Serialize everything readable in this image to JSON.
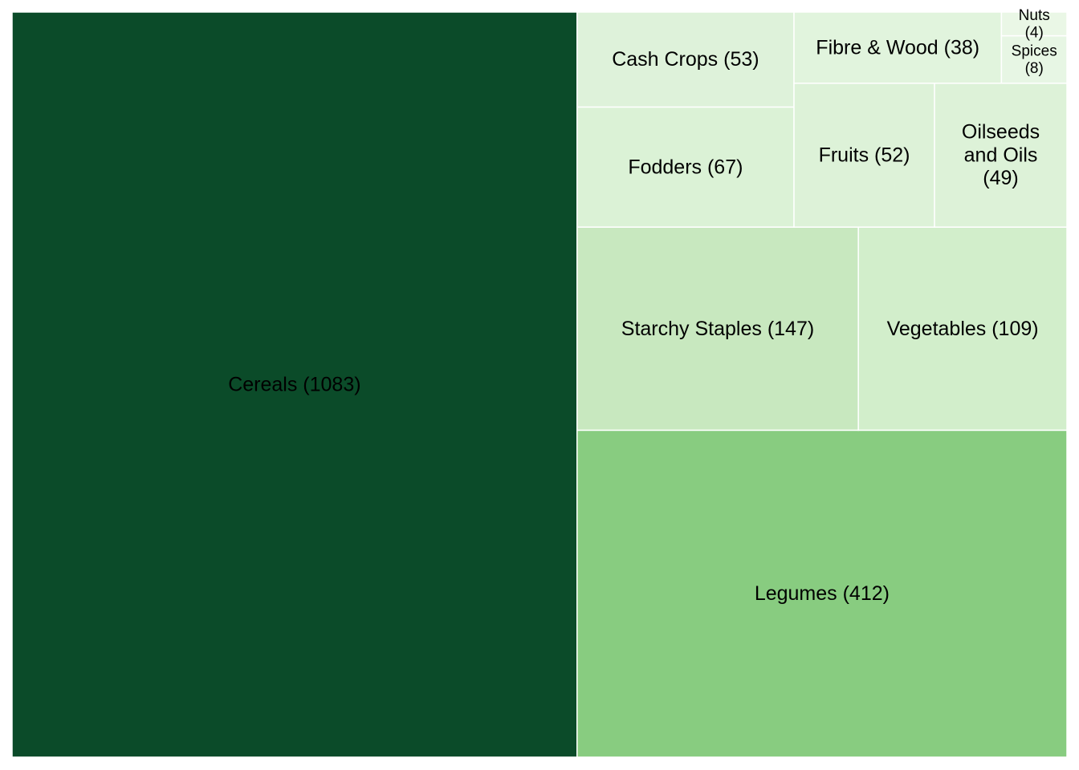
{
  "chart_data": {
    "type": "treemap",
    "title": "",
    "categories": [
      "Cereals",
      "Legumes",
      "Starchy Staples",
      "Vegetables",
      "Fodders",
      "Cash Crops",
      "Fruits",
      "Oilseeds and Oils",
      "Fibre & Wood",
      "Spices",
      "Nuts"
    ],
    "values": [
      1083,
      412,
      147,
      109,
      67,
      53,
      52,
      49,
      38,
      8,
      4
    ],
    "labels": [
      "Cereals (1083)",
      "Legumes (412)",
      "Starchy Staples (147)",
      "Vegetables (109)",
      "Fodders (67)",
      "Cash Crops (53)",
      "Fruits (52)",
      "Oilseeds and Oils (49)",
      "Fibre & Wood (38)",
      "Spices (8)",
      "Nuts (4)"
    ],
    "colors": [
      "#0b4b29",
      "#88cc80",
      "#c8e8bf",
      "#d2eecb",
      "#dbf2d6",
      "#def2da",
      "#ddf2d8",
      "#ddf2d8",
      "#e1f4dd",
      "#e7f6e4",
      "#eaf7e6"
    ],
    "legend": "none",
    "grid": false
  }
}
